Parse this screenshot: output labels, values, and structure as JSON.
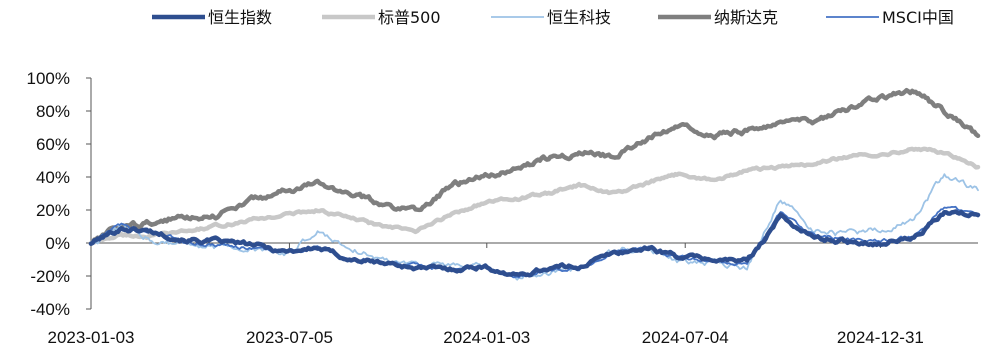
{
  "chart_data": {
    "type": "line",
    "title": "",
    "xlabel": "",
    "ylabel": "",
    "x_ticks": [
      "2023-01-03",
      "2023-07-05",
      "2024-01-03",
      "2024-07-04",
      "2024-12-31"
    ],
    "y_ticks": [
      "100%",
      "80%",
      "60%",
      "40%",
      "20%",
      "0%",
      "-20%",
      "-40%"
    ],
    "ylim": [
      -40,
      100
    ],
    "xlim": [
      "2023-01-03",
      "2025-03-31"
    ],
    "y_unit": "%",
    "grid": false,
    "legend_position": "top",
    "x": [
      "2023-01-03",
      "2023-01-31",
      "2023-02-28",
      "2023-03-31",
      "2023-04-28",
      "2023-05-31",
      "2023-06-30",
      "2023-07-31",
      "2023-08-31",
      "2023-09-29",
      "2023-10-31",
      "2023-11-30",
      "2023-12-29",
      "2024-01-31",
      "2024-02-29",
      "2024-03-28",
      "2024-04-30",
      "2024-05-31",
      "2024-06-28",
      "2024-07-31",
      "2024-08-30",
      "2024-09-30",
      "2024-10-31",
      "2024-11-29",
      "2024-12-31",
      "2025-01-31",
      "2025-02-28",
      "2025-03-31"
    ],
    "series": [
      {
        "name": "恒生指数",
        "color": "#2E4E8F",
        "width": 4.5,
        "values": [
          0,
          9,
          7,
          2,
          1,
          -1,
          -5,
          -3,
          -10,
          -12,
          -15,
          -16,
          -14,
          -20,
          -15,
          -14,
          -6,
          -3,
          -8,
          -10,
          -11,
          16,
          3,
          1,
          0,
          3,
          18,
          17
        ]
      },
      {
        "name": "标普500",
        "color": "#C8C8C8",
        "width": 4.5,
        "values": [
          0,
          5,
          4,
          7,
          10,
          14,
          17,
          20,
          15,
          10,
          7,
          17,
          24,
          27,
          30,
          35,
          30,
          36,
          42,
          38,
          44,
          46,
          48,
          52,
          54,
          57,
          55,
          46
        ]
      },
      {
        "name": "恒生科技",
        "color": "#9DC3E6",
        "width": 1.8,
        "values": [
          0,
          10,
          2,
          0,
          -3,
          -4,
          -7,
          7,
          -3,
          -10,
          -12,
          -14,
          -15,
          -22,
          -17,
          -16,
          -5,
          -2,
          -11,
          -12,
          -15,
          27,
          7,
          5,
          8,
          14,
          42,
          32
        ]
      },
      {
        "name": "纳斯达克",
        "color": "#7F7F7F",
        "width": 4.5,
        "values": [
          0,
          10,
          12,
          16,
          17,
          26,
          31,
          36,
          30,
          23,
          20,
          34,
          40,
          45,
          52,
          55,
          52,
          63,
          73,
          66,
          68,
          72,
          74,
          80,
          88,
          92,
          80,
          65
        ]
      },
      {
        "name": "MSCI中国",
        "color": "#4472C4",
        "width": 1.8,
        "values": [
          0,
          11,
          6,
          1,
          -1,
          -3,
          -6,
          -2,
          -9,
          -12,
          -14,
          -16,
          -15,
          -21,
          -16,
          -15,
          -6,
          -2,
          -9,
          -11,
          -13,
          19,
          4,
          2,
          1,
          4,
          22,
          16
        ]
      }
    ]
  }
}
